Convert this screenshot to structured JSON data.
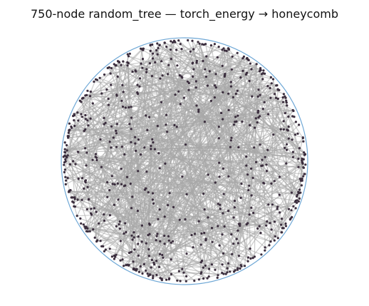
{
  "figure": {
    "title": "750-node random_tree — torch_energy → honeycomb"
  },
  "graph": {
    "node_count": 750,
    "boundary_color": "#6fa8d6",
    "edge_color": "#a8a8a8",
    "node_color": "#3a2d3d"
  }
}
